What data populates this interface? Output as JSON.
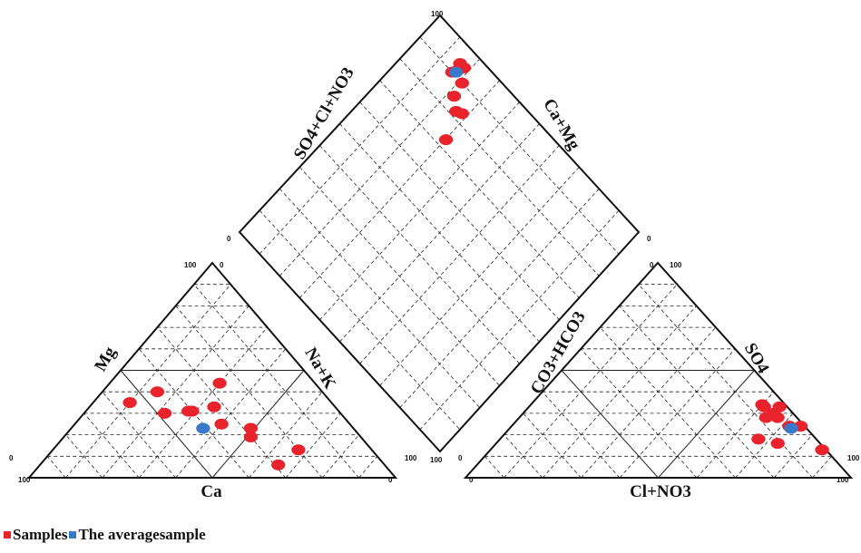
{
  "chart_data": {
    "type": "scatter",
    "subtype": "piper-diagram",
    "axis_titles": {
      "cation_left": "Mg",
      "cation_right": "Na+K",
      "cation_bottom": "Ca",
      "anion_left": "CO3+HCO3",
      "anion_right": "SO4",
      "anion_bottom": "Cl+NO3",
      "diamond_left": "SO4+Cl+NO3",
      "diamond_right": "Ca+Mg"
    },
    "tick_labels": {
      "cation_bottom_left": "100",
      "cation_bottom_right": "0",
      "cation_top": "100",
      "cation_top_right": "0",
      "cation_left_end": "0",
      "cation_right_end": "100",
      "anion_bottom_left": "0",
      "anion_bottom_right": "100",
      "anion_top": "100",
      "anion_top_left": "0",
      "anion_left_end": "0",
      "anion_right_end": "100",
      "diamond_top": "100",
      "diamond_left": "0",
      "diamond_right": "0",
      "diamond_bottom": "100"
    },
    "grid": true,
    "legend_position": "bottom-left",
    "colors": {
      "samples": "#e8232b",
      "average": "#3a78c9",
      "grid": "#222222"
    },
    "series": [
      {
        "name": "Samples",
        "cations": [
          {
            "ca": 55,
            "mg": 35,
            "nak": 10
          },
          {
            "ca": 48,
            "mg": 30,
            "nak": 22
          },
          {
            "ca": 45,
            "mg": 40,
            "nak": 15
          },
          {
            "ca": 41,
            "mg": 31,
            "nak": 28
          },
          {
            "ca": 40,
            "mg": 31,
            "nak": 29
          },
          {
            "ca": 35,
            "mg": 25,
            "nak": 40
          },
          {
            "ca": 33,
            "mg": 33,
            "nak": 34
          },
          {
            "ca": 30,
            "mg": 19,
            "nak": 51
          },
          {
            "ca": 20,
            "mg": 13,
            "nak": 67
          },
          {
            "ca": 29,
            "mg": 6,
            "nak": 65
          },
          {
            "ca": 28,
            "mg": 23,
            "nak": 49
          },
          {
            "ca": 26,
            "mg": 44,
            "nak": 30
          }
        ],
        "anions": [
          {
            "clno3": 60,
            "so4": 34,
            "hco3": 6
          },
          {
            "clno3": 61,
            "so4": 33,
            "hco3": 6
          },
          {
            "clno3": 65,
            "so4": 33,
            "hco3": 2
          },
          {
            "clno3": 65,
            "so4": 30,
            "hco3": 5
          },
          {
            "clno3": 64,
            "so4": 28,
            "hco3": 8
          },
          {
            "clno3": 67,
            "so4": 28,
            "hco3": 5
          },
          {
            "clno3": 72,
            "so4": 24,
            "hco3": 4
          },
          {
            "clno3": 75,
            "so4": 24,
            "hco3": 1
          },
          {
            "clno3": 67,
            "so4": 18,
            "hco3": 15
          },
          {
            "clno3": 73,
            "so4": 16,
            "hco3": 11
          },
          {
            "clno3": 86,
            "so4": 13,
            "hco3": 1
          }
        ],
        "diamond": [
          {
            "so4clno3": 94,
            "camg": 84
          },
          {
            "so4clno3": 94,
            "camg": 82
          },
          {
            "so4clno3": 92,
            "camg": 83
          },
          {
            "so4clno3": 90,
            "camg": 84
          },
          {
            "so4clno3": 90,
            "camg": 79
          },
          {
            "so4clno3": 85,
            "camg": 78
          },
          {
            "so4clno3": 82,
            "camg": 74
          },
          {
            "so4clno3": 83,
            "camg": 72
          },
          {
            "so4clno3": 73,
            "camg": 70
          }
        ]
      },
      {
        "name": "The averagesample",
        "cations": [
          {
            "ca": 41,
            "mg": 23,
            "nak": 36
          }
        ],
        "anions": [
          {
            "clno3": 73,
            "so4": 23,
            "hco3": 4
          }
        ],
        "diamond": [
          {
            "so4clno3": 91,
            "camg": 83
          }
        ]
      }
    ]
  },
  "legend": [
    {
      "label": "Samples",
      "color": "#e8232b"
    },
    {
      "label": "The averagesample",
      "color": "#3a78c9"
    }
  ]
}
